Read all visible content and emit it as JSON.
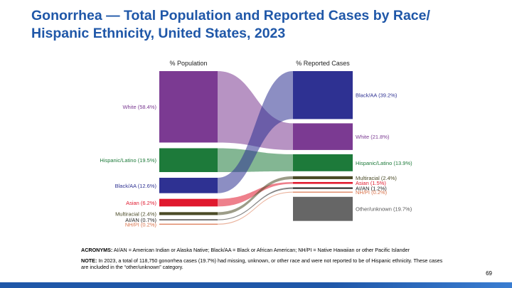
{
  "title": {
    "line1": "Gonorrhea — Total Population and Reported Cases by Race/",
    "line2": "Hispanic Ethnicity, United States, 2023"
  },
  "chart_data": {
    "type": "sankey",
    "left_header": "% Population",
    "right_header": "% Reported Cases",
    "left": [
      {
        "key": "white",
        "label": "White (58.4%)",
        "value": 58.4,
        "color": "#7b3a92",
        "label_color": "#7b3a92"
      },
      {
        "key": "hispanic",
        "label": "Hispanic/Latino (19.5%)",
        "value": 19.5,
        "color": "#1d7a3a",
        "label_color": "#1d7a3a"
      },
      {
        "key": "black",
        "label": "Black/AA (12.6%)",
        "value": 12.6,
        "color": "#2e3192",
        "label_color": "#2e3192"
      },
      {
        "key": "asian",
        "label": "Asian (6.2%)",
        "value": 6.2,
        "color": "#e0182d",
        "label_color": "#e0182d"
      },
      {
        "key": "multi",
        "label": "Multiracial (2.4%)",
        "value": 2.4,
        "color": "#4a4a26",
        "label_color": "#4a4a26"
      },
      {
        "key": "aian",
        "label": "AI/AN (0.7%)",
        "value": 0.7,
        "color": "#222222",
        "label_color": "#222222"
      },
      {
        "key": "nhpi",
        "label": "NH/PI (0.2%)",
        "value": 0.2,
        "color": "#d9724a",
        "label_color": "#d9724a"
      }
    ],
    "right": [
      {
        "key": "black",
        "label": "Black/AA (39.2%)",
        "value": 39.2,
        "color": "#2e3192",
        "label_color": "#2e3192"
      },
      {
        "key": "white",
        "label": "White (21.8%)",
        "value": 21.8,
        "color": "#7b3a92",
        "label_color": "#7b3a92"
      },
      {
        "key": "hispanic",
        "label": "Hispanic/Latino (13.9%)",
        "value": 13.9,
        "color": "#1d7a3a",
        "label_color": "#1d7a3a"
      },
      {
        "key": "multi",
        "label": "Multiracial (2.4%)",
        "value": 2.4,
        "color": "#4a4a26",
        "label_color": "#4a4a26"
      },
      {
        "key": "asian",
        "label": "Asian (1.5%)",
        "value": 1.5,
        "color": "#e0182d",
        "label_color": "#e0182d"
      },
      {
        "key": "aian",
        "label": "AI/AN (1.2%)",
        "value": 1.2,
        "color": "#222222",
        "label_color": "#222222"
      },
      {
        "key": "nhpi",
        "label": "NH/PI (0.2%)",
        "value": 0.2,
        "color": "#d9724a",
        "label_color": "#d9724a"
      },
      {
        "key": "other",
        "label": "Other/unknown (19.7%)",
        "value": 19.7,
        "color": "#666666",
        "label_color": "#555555"
      }
    ]
  },
  "notes": {
    "acronyms_label": "ACRONYMS:",
    "acronyms_text": " AI/AN = American Indian or Alaska Native; Black/AA = Black or African American; NH/PI = Native Hawaiian or other Pacific Islander",
    "note_label": "NOTE:",
    "note_text": " In 2023, a total of 118,750 gonorrhea cases (19.7%) had missing, unknown, or other race and were not reported to be of Hispanic ethnicity. These cases are included in the “other/unknown” category."
  },
  "page_number": "69"
}
